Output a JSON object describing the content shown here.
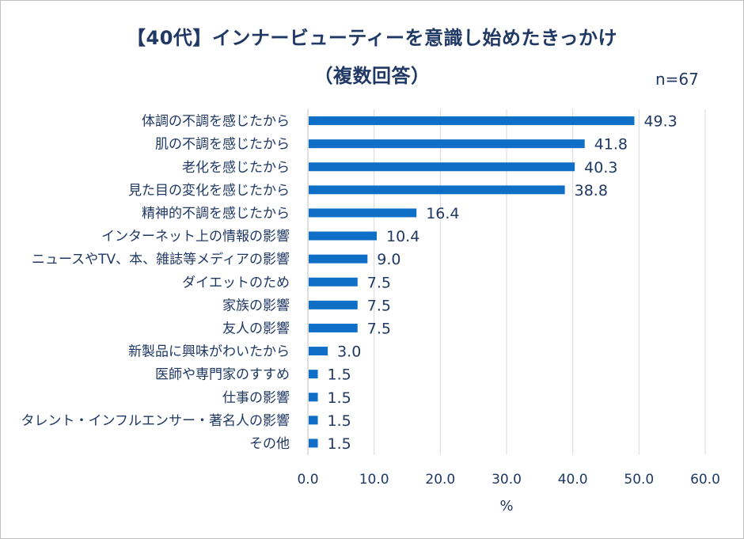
{
  "title_line1": "【40代】インナービューティーを意識し始めたきっかけ",
  "title_line2": "（複数回答）",
  "sample_size": "n=67",
  "chart_data": {
    "type": "bar",
    "orientation": "horizontal",
    "categories": [
      "体調の不調を感じたから",
      "肌の不調を感じたから",
      "老化を感じたから",
      "見た目の変化を感じたから",
      "精神的不調を感じたから",
      "インターネット上の情報の影響",
      "ニュースやTV、本、雑誌等メディアの影響",
      "ダイエットのため",
      "家族の影響",
      "友人の影響",
      "新製品に興味がわいたから",
      "医師や専門家のすすめ",
      "仕事の影響",
      "タレント・インフルエンサー・著名人の影響",
      "その他"
    ],
    "values": [
      49.3,
      41.8,
      40.3,
      38.8,
      16.4,
      10.4,
      9.0,
      7.5,
      7.5,
      7.5,
      3.0,
      1.5,
      1.5,
      1.5,
      1.5
    ],
    "value_labels": [
      "49.3",
      "41.8",
      "40.3",
      "38.8",
      "16.4",
      "10.4",
      "9.0",
      "7.5",
      "7.5",
      "7.5",
      "3.0",
      "1.5",
      "1.5",
      "1.5",
      "1.5"
    ],
    "xlim": [
      0,
      60
    ],
    "x_ticks": [
      "0.0",
      "10.0",
      "20.0",
      "30.0",
      "40.0",
      "50.0",
      "60.0"
    ],
    "xlabel": "%",
    "grid": "vertical",
    "bar_color": "#0f6fc6",
    "text_color": "#1f3864",
    "grid_color": "#d9d9d9"
  }
}
